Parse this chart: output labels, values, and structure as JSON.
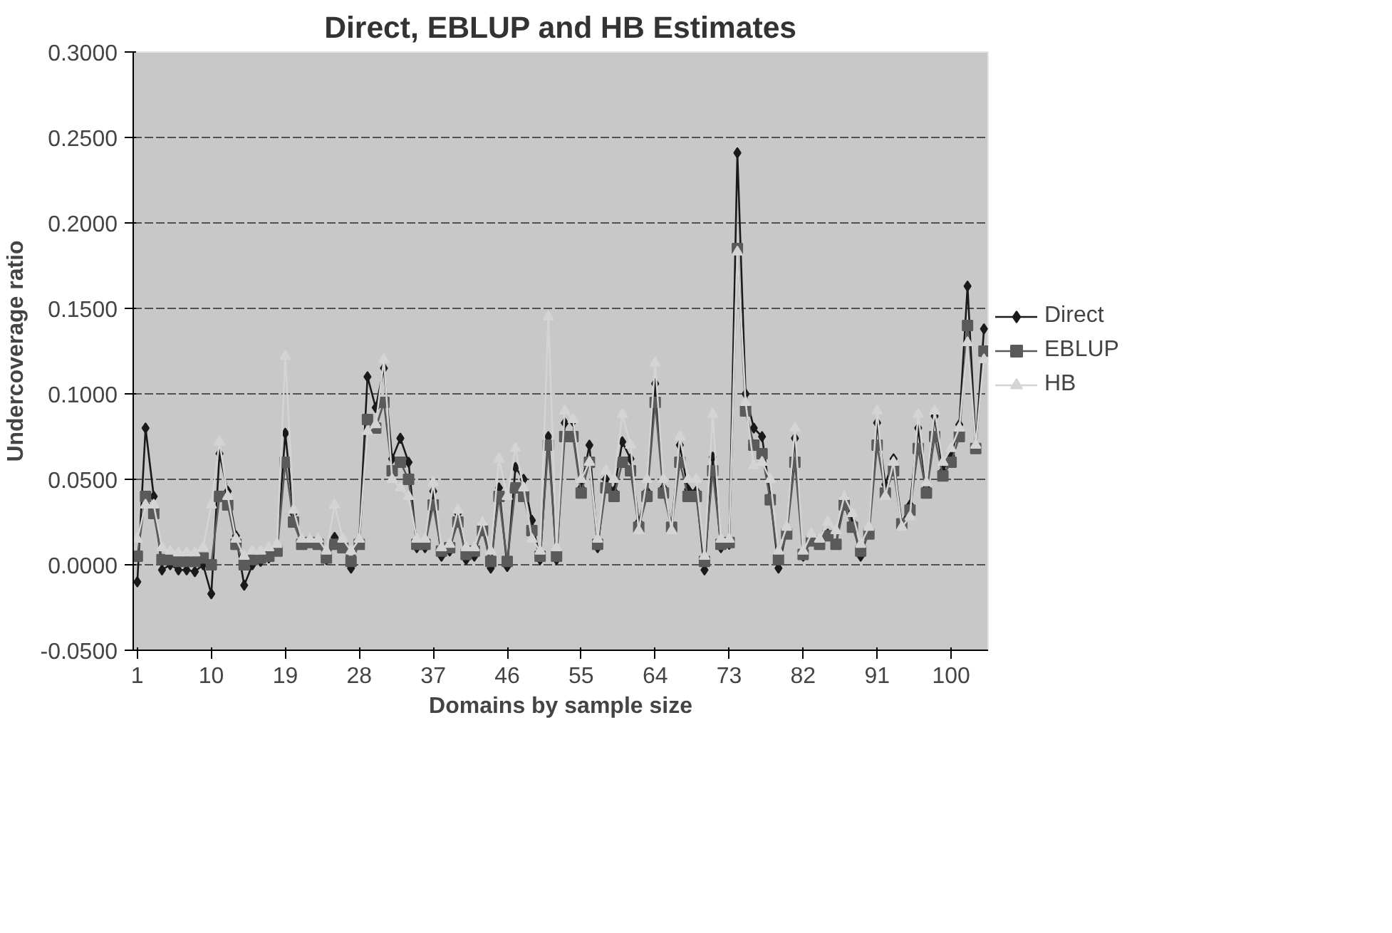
{
  "chart_data": {
    "type": "line",
    "title": "Direct, EBLUP and HB Estimates",
    "xlabel": "Domains by sample size",
    "ylabel": "Undercoverage ratio",
    "categories": [
      "1",
      null,
      null,
      null,
      null,
      null,
      null,
      null,
      null,
      "10",
      null,
      null,
      null,
      null,
      null,
      null,
      null,
      null,
      "19",
      null,
      null,
      null,
      null,
      null,
      null,
      null,
      null,
      "28",
      null,
      null,
      null,
      null,
      null,
      null,
      null,
      null,
      "37",
      null,
      null,
      null,
      null,
      null,
      null,
      null,
      null,
      "46",
      null,
      null,
      null,
      null,
      null,
      null,
      null,
      null,
      "55",
      null,
      null,
      null,
      null,
      null,
      null,
      null,
      null,
      "64",
      null,
      null,
      null,
      null,
      null,
      null,
      null,
      null,
      "73",
      null,
      null,
      null,
      null,
      null,
      null,
      null,
      null,
      "82",
      null,
      null,
      null,
      null,
      null,
      null,
      null,
      null,
      "91",
      null,
      null,
      null,
      null,
      null,
      null,
      null,
      null,
      "100",
      null,
      null,
      null,
      null
    ],
    "ylim": [
      -0.05,
      0.3
    ],
    "yticks": [
      {
        "value": -0.05,
        "label": "-0.0500"
      },
      {
        "value": 0,
        "label": "0.0000"
      },
      {
        "value": 0.05,
        "label": "0.0500"
      },
      {
        "value": 0.1,
        "label": "0.1000"
      },
      {
        "value": 0.15,
        "label": "0.1500"
      },
      {
        "value": 0.2,
        "label": "0.2000"
      },
      {
        "value": 0.25,
        "label": "0.2500"
      },
      {
        "value": 0.3,
        "label": "0.3000"
      }
    ],
    "grid": "y",
    "legend": "right",
    "line_style": "solid",
    "series": [
      {
        "name": "Direct",
        "color": "#1a1a1a",
        "marker": "diamond",
        "values": [
          -0.01,
          0.08,
          0.04,
          -0.003,
          0.0,
          -0.003,
          -0.003,
          -0.004,
          0.0,
          -0.017,
          0.065,
          0.043,
          0.017,
          -0.012,
          0.0,
          0.002,
          0.004,
          0.01,
          0.077,
          0.03,
          0.014,
          0.015,
          0.014,
          0.003,
          0.016,
          0.013,
          -0.002,
          0.015,
          0.11,
          0.092,
          0.115,
          0.062,
          0.074,
          0.06,
          0.01,
          0.01,
          0.043,
          0.005,
          0.008,
          0.03,
          0.003,
          0.005,
          0.025,
          -0.002,
          0.045,
          -0.001,
          0.057,
          0.05,
          0.026,
          0.003,
          0.075,
          0.003,
          0.083,
          0.084,
          0.045,
          0.07,
          0.01,
          0.05,
          0.043,
          0.072,
          0.062,
          0.025,
          0.043,
          0.106,
          0.045,
          0.023,
          0.07,
          0.044,
          0.043,
          -0.003,
          0.063,
          0.01,
          0.012,
          0.241,
          0.1,
          0.08,
          0.075,
          0.04,
          -0.002,
          0.02,
          0.074,
          0.005,
          0.015,
          0.012,
          0.018,
          0.012,
          0.04,
          0.025,
          0.005,
          0.02,
          0.083,
          0.047,
          0.062,
          0.024,
          0.035,
          0.08,
          0.045,
          0.087,
          0.055,
          0.064,
          0.082,
          0.163,
          0.07,
          0.138
        ]
      },
      {
        "name": "EBLUP",
        "color": "#5a5a5a",
        "marker": "square",
        "values": [
          0.005,
          0.04,
          0.03,
          0.003,
          0.003,
          0.002,
          0.002,
          0.002,
          0.004,
          0.0,
          0.04,
          0.035,
          0.012,
          0.0,
          0.003,
          0.004,
          0.005,
          0.008,
          0.06,
          0.025,
          0.012,
          0.013,
          0.012,
          0.004,
          0.012,
          0.01,
          0.002,
          0.012,
          0.085,
          0.08,
          0.095,
          0.055,
          0.06,
          0.05,
          0.012,
          0.012,
          0.035,
          0.008,
          0.01,
          0.025,
          0.006,
          0.008,
          0.02,
          0.002,
          0.04,
          0.002,
          0.045,
          0.04,
          0.02,
          0.005,
          0.07,
          0.005,
          0.075,
          0.075,
          0.042,
          0.06,
          0.012,
          0.045,
          0.04,
          0.06,
          0.055,
          0.022,
          0.04,
          0.095,
          0.042,
          0.022,
          0.06,
          0.04,
          0.04,
          0.002,
          0.055,
          0.012,
          0.013,
          0.185,
          0.09,
          0.07,
          0.065,
          0.038,
          0.003,
          0.018,
          0.06,
          0.006,
          0.014,
          0.012,
          0.017,
          0.012,
          0.035,
          0.022,
          0.008,
          0.018,
          0.07,
          0.042,
          0.055,
          0.024,
          0.032,
          0.068,
          0.042,
          0.075,
          0.052,
          0.06,
          0.075,
          0.14,
          0.068,
          0.125
        ]
      },
      {
        "name": "HB",
        "color": "#d4d4d4",
        "marker": "triangle",
        "values": [
          0.015,
          0.035,
          0.035,
          0.01,
          0.008,
          0.007,
          0.007,
          0.007,
          0.01,
          0.035,
          0.072,
          0.04,
          0.015,
          0.005,
          0.008,
          0.008,
          0.01,
          0.012,
          0.122,
          0.032,
          0.015,
          0.015,
          0.015,
          0.008,
          0.035,
          0.015,
          0.008,
          0.015,
          0.078,
          0.082,
          0.12,
          0.05,
          0.045,
          0.04,
          0.015,
          0.015,
          0.048,
          0.01,
          0.012,
          0.032,
          0.01,
          0.01,
          0.025,
          0.008,
          0.062,
          0.04,
          0.068,
          0.045,
          0.015,
          0.008,
          0.145,
          0.01,
          0.09,
          0.085,
          0.05,
          0.06,
          0.015,
          0.055,
          0.05,
          0.088,
          0.07,
          0.02,
          0.05,
          0.118,
          0.05,
          0.02,
          0.075,
          0.05,
          0.05,
          0.005,
          0.088,
          0.015,
          0.015,
          0.183,
          0.095,
          0.058,
          0.06,
          0.05,
          0.008,
          0.022,
          0.08,
          0.008,
          0.018,
          0.015,
          0.025,
          0.02,
          0.04,
          0.03,
          0.012,
          0.022,
          0.09,
          0.04,
          0.06,
          0.022,
          0.028,
          0.088,
          0.048,
          0.09,
          0.06,
          0.068,
          0.08,
          0.13,
          0.07,
          0.12
        ]
      }
    ]
  }
}
